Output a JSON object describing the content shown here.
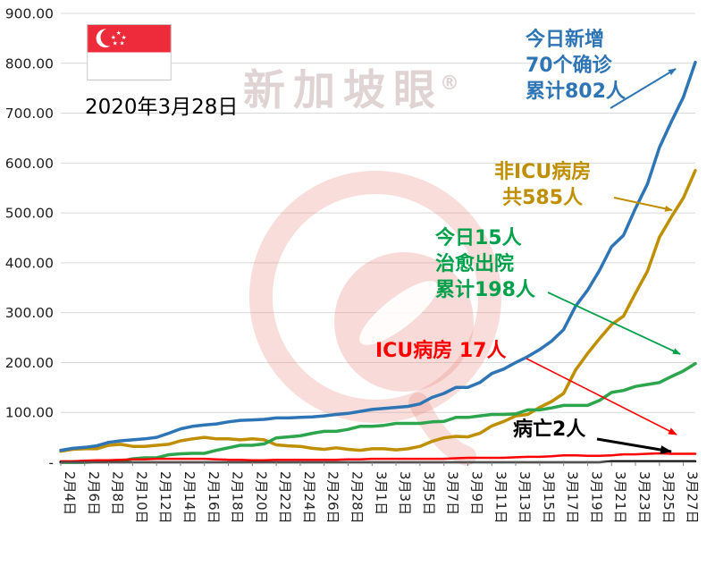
{
  "header": {
    "date": "2020年3月28日"
  },
  "watermark": {
    "text": "新加坡眼",
    "registered_mark": "®"
  },
  "icons": {
    "flag": "singapore-flag-icon",
    "watermark_logo": "xinjiapoyan-eye-logo"
  },
  "annotations": {
    "confirmed": {
      "lines": [
        "今日新增",
        "70个确诊",
        "累计802人"
      ],
      "color": "#2E75B6"
    },
    "non_icu": {
      "lines": [
        "非ICU病房",
        "共585人"
      ],
      "color": "#BF8F00"
    },
    "recovered": {
      "lines": [
        "今日15人",
        "治愈出院",
        "累计198人"
      ],
      "color": "#00A14B"
    },
    "icu": {
      "lines": [
        "ICU病房 17人"
      ],
      "color": "#FF0000"
    },
    "deaths": {
      "lines": [
        "病亡2人"
      ],
      "color": "#000000"
    }
  },
  "chart_data": {
    "type": "line",
    "title": "",
    "xlabel": "",
    "ylabel": "",
    "grid": true,
    "legend_position": "none",
    "ylim": [
      0,
      900
    ],
    "y_ticks": [
      {
        "label": "900.00",
        "value": 900
      },
      {
        "label": "800.00",
        "value": 800
      },
      {
        "label": "700.00",
        "value": 700
      },
      {
        "label": "600.00",
        "value": 600
      },
      {
        "label": "500.00",
        "value": 500
      },
      {
        "label": "400.00",
        "value": 400
      },
      {
        "label": "300.00",
        "value": 300
      },
      {
        "label": "200.00",
        "value": 200
      },
      {
        "label": "100.00",
        "value": 100
      },
      {
        "label": "-",
        "value": 0
      }
    ],
    "x_ticks": [
      "2月4日",
      "2月6日",
      "2月8日",
      "2月10日",
      "2月12日",
      "2月14日",
      "2月16日",
      "2月18日",
      "2月20日",
      "2月22日",
      "2月24日",
      "2月26日",
      "2月28日",
      "3月1日",
      "3月3日",
      "3月5日",
      "3月7日",
      "3月9日",
      "3月11日",
      "3月13日",
      "3月15日",
      "3月17日",
      "3月19日",
      "3月21日",
      "3月23日",
      "3月25日",
      "3月27日"
    ],
    "x_tick_step": 2,
    "n_points": 54,
    "series": [
      {
        "name": "non_icu",
        "color": "#BF8F00",
        "width": 3.5,
        "values": [
          22,
          26,
          27,
          27,
          34,
          36,
          32,
          32,
          34,
          36,
          43,
          47,
          50,
          47,
          47,
          45,
          47,
          45,
          35,
          33,
          32,
          28,
          26,
          29,
          26,
          24,
          27,
          27,
          25,
          27,
          32,
          42,
          49,
          52,
          51,
          58,
          73,
          82,
          93,
          96,
          110,
          122,
          138,
          185,
          218,
          248,
          276,
          293,
          339,
          383,
          451,
          492,
          530,
          585
        ]
      },
      {
        "name": "recovered",
        "color": "#2CA54C",
        "width": 3.5,
        "values": [
          0,
          0,
          0,
          2,
          2,
          2,
          7,
          9,
          9,
          15,
          17,
          18,
          18,
          24,
          29,
          34,
          34,
          37,
          49,
          51,
          53,
          58,
          62,
          62,
          66,
          72,
          72,
          74,
          78,
          78,
          78,
          81,
          82,
          90,
          90,
          93,
          96,
          96,
          97,
          105,
          105,
          109,
          114,
          114,
          114,
          124,
          140,
          144,
          152,
          156,
          160,
          172,
          183,
          198
        ]
      },
      {
        "name": "icu",
        "color": "#FF0000",
        "width": 2.5,
        "values": [
          2,
          2,
          3,
          4,
          4,
          5,
          6,
          6,
          7,
          7,
          7,
          7,
          7,
          6,
          5,
          5,
          4,
          4,
          5,
          5,
          5,
          5,
          5,
          5,
          6,
          6,
          7,
          7,
          7,
          7,
          7,
          7,
          7,
          8,
          9,
          9,
          9,
          9,
          10,
          11,
          11,
          12,
          14,
          14,
          13,
          13,
          14,
          16,
          16,
          17,
          18,
          17,
          17,
          17
        ]
      },
      {
        "name": "deaths",
        "color": "#000000",
        "width": 2.5,
        "values": [
          0,
          0,
          0,
          0,
          0,
          0,
          0,
          0,
          0,
          0,
          0,
          0,
          0,
          0,
          0,
          0,
          0,
          0,
          0,
          0,
          0,
          0,
          0,
          0,
          0,
          0,
          0,
          0,
          0,
          0,
          0,
          0,
          0,
          0,
          0,
          0,
          0,
          0,
          0,
          0,
          0,
          0,
          0,
          0,
          0,
          0,
          2,
          2,
          2,
          2,
          2,
          2,
          2,
          2
        ]
      },
      {
        "name": "confirmed",
        "color": "#2E75B6",
        "width": 3.5,
        "values": [
          24,
          28,
          30,
          33,
          40,
          43,
          45,
          47,
          50,
          58,
          67,
          72,
          75,
          77,
          81,
          84,
          85,
          86,
          89,
          89,
          90,
          91,
          93,
          96,
          98,
          102,
          106,
          108,
          110,
          112,
          117,
          130,
          138,
          150,
          150,
          160,
          178,
          187,
          200,
          212,
          226,
          243,
          266,
          313,
          345,
          385,
          432,
          455,
          509,
          558,
          631,
          683,
          732,
          802
        ]
      }
    ]
  }
}
